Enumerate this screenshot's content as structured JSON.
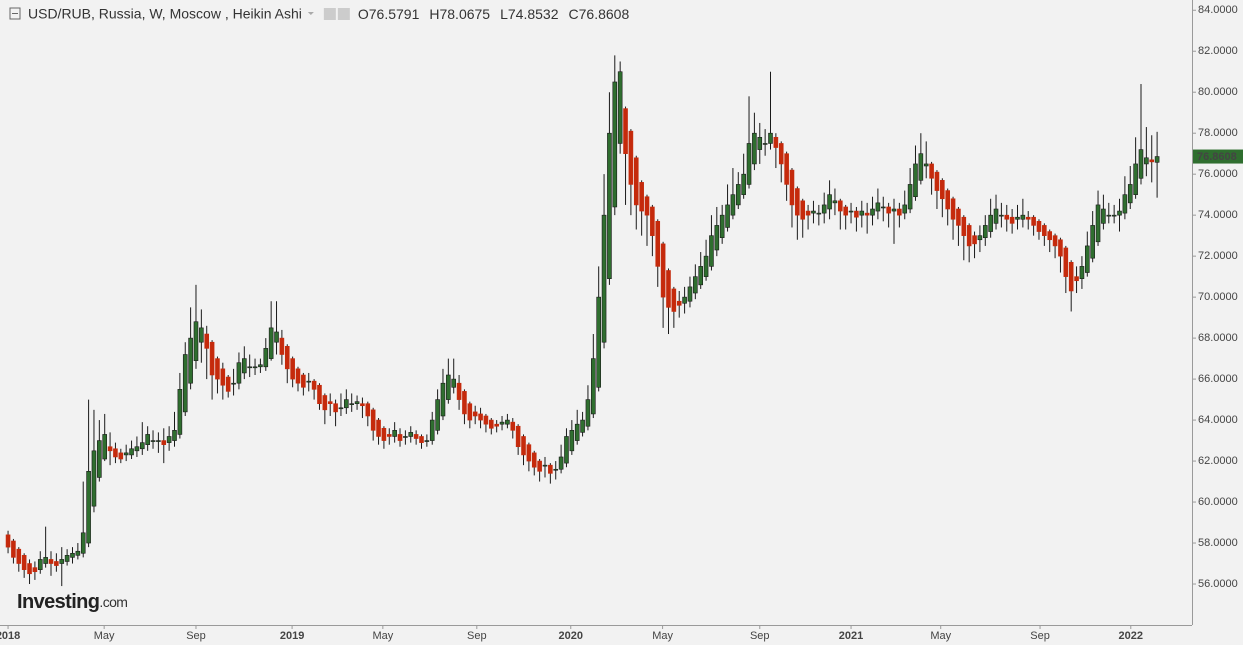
{
  "chart_data": {
    "type": "candlestick",
    "title": "USD/RUB, Russia, W, Moscow , Heikin Ashi",
    "ohlc_prefixes": [
      "O",
      "H",
      "L",
      "C"
    ],
    "watermark": [
      "Investing",
      ".com"
    ],
    "up_color": "#2f6e2f",
    "down_color": "#c52a0c",
    "edge_color": "#1a1a1a",
    "ylim": [
      54,
      84.5
    ],
    "xlim": [
      -1.5,
      220.5
    ],
    "yticks": [
      {
        "value": 56,
        "label": "56.0000"
      },
      {
        "value": 58,
        "label": "58.0000"
      },
      {
        "value": 60,
        "label": "60.0000"
      },
      {
        "value": 62,
        "label": "62.0000"
      },
      {
        "value": 64,
        "label": "64.0000"
      },
      {
        "value": 66,
        "label": "66.0000"
      },
      {
        "value": 68,
        "label": "68.0000"
      },
      {
        "value": 70,
        "label": "70.0000"
      },
      {
        "value": 72,
        "label": "72.0000"
      },
      {
        "value": 74,
        "label": "74.0000"
      },
      {
        "value": 76,
        "label": "76.0000"
      },
      {
        "value": 78,
        "label": "78.0000"
      },
      {
        "value": 80,
        "label": "80.0000"
      },
      {
        "value": 82,
        "label": "82.0000"
      },
      {
        "value": 84,
        "label": "84.0000"
      }
    ],
    "xticks": [
      {
        "value": 0,
        "label": "2018"
      },
      {
        "value": 17.9,
        "label": "May"
      },
      {
        "value": 35,
        "label": "Sep"
      },
      {
        "value": 52.9,
        "label": "2019"
      },
      {
        "value": 69.8,
        "label": "May"
      },
      {
        "value": 87.3,
        "label": "Sep"
      },
      {
        "value": 104.8,
        "label": "2020"
      },
      {
        "value": 121.9,
        "label": "May"
      },
      {
        "value": 140,
        "label": "Sep"
      },
      {
        "value": 157,
        "label": "2021"
      },
      {
        "value": 173.7,
        "label": "May"
      },
      {
        "value": 192.2,
        "label": "Sep"
      },
      {
        "value": 209.1,
        "label": "2022"
      }
    ],
    "ohlc": [
      [
        58.4,
        58.6,
        57.5,
        57.8
      ],
      [
        58.1,
        58.2,
        57.0,
        57.3
      ],
      [
        57.7,
        57.8,
        56.6,
        57.0
      ],
      [
        57.4,
        57.5,
        56.3,
        56.7
      ],
      [
        57.0,
        57.2,
        56.0,
        56.5
      ],
      [
        56.8,
        57.1,
        56.2,
        56.6
      ],
      [
        56.7,
        57.6,
        56.5,
        57.2
      ],
      [
        57.0,
        58.8,
        56.8,
        57.3
      ],
      [
        57.2,
        57.6,
        56.4,
        57.0
      ],
      [
        57.1,
        57.5,
        56.6,
        56.9
      ],
      [
        57.0,
        57.8,
        55.9,
        57.2
      ],
      [
        57.1,
        57.7,
        56.9,
        57.4
      ],
      [
        57.3,
        57.8,
        57.0,
        57.5
      ],
      [
        57.4,
        58.0,
        57.2,
        57.6
      ],
      [
        57.5,
        61.0,
        57.3,
        58.5
      ],
      [
        58.0,
        65.0,
        57.8,
        61.5
      ],
      [
        59.8,
        64.5,
        59.5,
        62.5
      ],
      [
        61.2,
        64.0,
        61.0,
        63.0
      ],
      [
        62.1,
        64.3,
        62.0,
        63.3
      ],
      [
        62.7,
        63.4,
        61.8,
        62.5
      ],
      [
        62.6,
        62.9,
        61.9,
        62.2
      ],
      [
        62.4,
        62.6,
        61.9,
        62.1
      ],
      [
        62.3,
        62.8,
        62.0,
        62.4
      ],
      [
        62.3,
        63.0,
        62.1,
        62.6
      ],
      [
        62.5,
        63.2,
        62.2,
        62.7
      ],
      [
        62.6,
        63.9,
        62.3,
        62.9
      ],
      [
        62.8,
        63.7,
        62.5,
        63.3
      ],
      [
        63.0,
        63.5,
        62.6,
        63.0
      ],
      [
        63.0,
        63.4,
        62.4,
        63.0
      ],
      [
        63.0,
        63.6,
        61.9,
        62.8
      ],
      [
        62.9,
        63.7,
        62.5,
        63.2
      ],
      [
        63.0,
        64.4,
        62.7,
        63.5
      ],
      [
        63.3,
        66.3,
        63.1,
        65.5
      ],
      [
        64.4,
        67.8,
        64.2,
        67.2
      ],
      [
        65.8,
        69.5,
        65.5,
        68.0
      ],
      [
        66.9,
        70.6,
        66.5,
        68.8
      ],
      [
        67.8,
        69.4,
        66.8,
        68.5
      ],
      [
        68.2,
        68.6,
        66.0,
        67.5
      ],
      [
        67.8,
        67.9,
        65.0,
        66.2
      ],
      [
        67.0,
        67.1,
        65.3,
        66.0
      ],
      [
        66.5,
        66.8,
        65.0,
        65.7
      ],
      [
        66.1,
        66.2,
        65.1,
        65.4
      ],
      [
        65.8,
        66.5,
        65.2,
        65.8
      ],
      [
        65.8,
        67.3,
        65.5,
        66.8
      ],
      [
        66.3,
        67.6,
        66.0,
        67.0
      ],
      [
        66.6,
        67.2,
        66.1,
        66.6
      ],
      [
        66.6,
        67.0,
        66.2,
        66.6
      ],
      [
        66.6,
        67.0,
        66.3,
        66.7
      ],
      [
        66.6,
        68.0,
        66.4,
        67.5
      ],
      [
        67.0,
        69.8,
        66.9,
        68.5
      ],
      [
        67.8,
        69.8,
        67.2,
        68.3
      ],
      [
        68.0,
        68.4,
        66.7,
        67.2
      ],
      [
        67.6,
        67.7,
        65.8,
        66.5
      ],
      [
        67.0,
        67.1,
        65.6,
        66.0
      ],
      [
        66.5,
        66.6,
        65.4,
        65.8
      ],
      [
        66.2,
        66.3,
        65.2,
        65.6
      ],
      [
        65.9,
        66.3,
        65.4,
        65.9
      ],
      [
        65.9,
        66.0,
        65.0,
        65.5
      ],
      [
        65.7,
        65.8,
        64.5,
        64.8
      ],
      [
        65.2,
        65.3,
        63.8,
        64.5
      ],
      [
        64.9,
        65.3,
        64.2,
        64.8
      ],
      [
        64.8,
        65.0,
        63.7,
        64.4
      ],
      [
        64.6,
        65.3,
        64.2,
        64.6
      ],
      [
        64.6,
        65.5,
        64.3,
        65.0
      ],
      [
        64.8,
        65.3,
        64.4,
        64.8
      ],
      [
        64.8,
        65.2,
        64.5,
        64.9
      ],
      [
        64.8,
        65.1,
        64.1,
        64.7
      ],
      [
        64.8,
        64.9,
        63.7,
        64.2
      ],
      [
        64.5,
        64.6,
        63.0,
        63.5
      ],
      [
        64.0,
        64.1,
        62.8,
        63.2
      ],
      [
        63.6,
        63.7,
        62.6,
        63.0
      ],
      [
        63.3,
        63.6,
        62.8,
        63.2
      ],
      [
        63.2,
        63.9,
        62.9,
        63.5
      ],
      [
        63.3,
        63.6,
        62.7,
        63.0
      ],
      [
        63.2,
        63.5,
        62.8,
        63.2
      ],
      [
        63.2,
        63.7,
        62.9,
        63.4
      ],
      [
        63.3,
        63.5,
        62.8,
        63.1
      ],
      [
        63.2,
        63.3,
        62.6,
        62.9
      ],
      [
        63.0,
        63.3,
        62.7,
        63.0
      ],
      [
        63.0,
        64.4,
        62.8,
        64.0
      ],
      [
        63.5,
        65.5,
        63.3,
        65.0
      ],
      [
        64.2,
        66.5,
        64.0,
        65.8
      ],
      [
        65.0,
        67.0,
        64.8,
        66.2
      ],
      [
        65.6,
        67.0,
        65.3,
        66.0
      ],
      [
        65.8,
        66.2,
        64.5,
        65.0
      ],
      [
        65.4,
        65.5,
        63.8,
        64.3
      ],
      [
        64.8,
        64.9,
        63.6,
        64.0
      ],
      [
        64.4,
        64.7,
        63.8,
        64.2
      ],
      [
        64.3,
        64.6,
        63.6,
        64.0
      ],
      [
        64.2,
        64.3,
        63.4,
        63.8
      ],
      [
        64.0,
        64.1,
        63.3,
        63.6
      ],
      [
        63.8,
        64.0,
        63.4,
        63.7
      ],
      [
        63.8,
        64.2,
        63.5,
        63.9
      ],
      [
        63.8,
        64.3,
        63.6,
        64.0
      ],
      [
        63.9,
        64.1,
        63.1,
        63.5
      ],
      [
        63.7,
        63.8,
        62.3,
        62.7
      ],
      [
        63.2,
        63.3,
        61.8,
        62.3
      ],
      [
        62.8,
        62.9,
        61.5,
        62.0
      ],
      [
        62.4,
        62.5,
        61.3,
        61.7
      ],
      [
        62.0,
        62.1,
        61.0,
        61.5
      ],
      [
        61.8,
        62.2,
        61.2,
        61.8
      ],
      [
        61.8,
        61.9,
        60.9,
        61.4
      ],
      [
        61.6,
        62.0,
        61.1,
        61.6
      ],
      [
        61.6,
        62.8,
        61.4,
        62.2
      ],
      [
        61.9,
        63.6,
        61.7,
        63.2
      ],
      [
        62.5,
        64.0,
        62.3,
        63.5
      ],
      [
        63.0,
        64.5,
        62.8,
        63.8
      ],
      [
        63.4,
        64.4,
        63.2,
        64.0
      ],
      [
        63.7,
        65.7,
        63.5,
        65.0
      ],
      [
        64.3,
        68.2,
        64.1,
        67.0
      ],
      [
        65.6,
        71.5,
        65.4,
        70.0
      ],
      [
        67.8,
        76.0,
        67.5,
        74.0
      ],
      [
        70.9,
        80.0,
        70.6,
        78.0
      ],
      [
        74.4,
        81.8,
        74.0,
        80.5
      ],
      [
        77.5,
        81.5,
        77.0,
        81.0
      ],
      [
        79.2,
        79.3,
        74.5,
        77.0
      ],
      [
        78.1,
        78.2,
        74.0,
        75.5
      ],
      [
        76.8,
        76.9,
        73.3,
        74.5
      ],
      [
        75.6,
        75.7,
        73.0,
        74.2
      ],
      [
        74.9,
        75.0,
        72.5,
        74.0
      ],
      [
        74.4,
        74.5,
        72.0,
        73.0
      ],
      [
        73.7,
        73.8,
        70.5,
        71.5
      ],
      [
        72.6,
        72.7,
        68.5,
        70.0
      ],
      [
        71.3,
        71.4,
        68.2,
        69.5
      ],
      [
        70.4,
        70.5,
        68.5,
        69.3
      ],
      [
        69.8,
        70.3,
        69.0,
        69.6
      ],
      [
        69.7,
        70.5,
        69.2,
        70.0
      ],
      [
        69.8,
        71.0,
        69.5,
        70.5
      ],
      [
        70.2,
        71.6,
        69.9,
        71.0
      ],
      [
        70.6,
        72.2,
        70.4,
        71.5
      ],
      [
        71.0,
        72.8,
        70.8,
        72.0
      ],
      [
        71.5,
        74.0,
        71.3,
        73.0
      ],
      [
        72.3,
        74.4,
        72.0,
        73.5
      ],
      [
        72.9,
        74.5,
        72.6,
        74.0
      ],
      [
        73.4,
        75.5,
        73.2,
        74.5
      ],
      [
        74.0,
        76.3,
        73.8,
        75.0
      ],
      [
        74.5,
        76.1,
        74.3,
        75.5
      ],
      [
        75.0,
        77.0,
        74.8,
        76.0
      ],
      [
        75.5,
        79.8,
        75.3,
        77.5
      ],
      [
        76.5,
        79.0,
        76.2,
        78.0
      ],
      [
        77.2,
        78.5,
        76.5,
        77.8
      ],
      [
        77.5,
        78.2,
        76.9,
        77.5
      ],
      [
        77.5,
        81.0,
        77.2,
        78.0
      ],
      [
        77.8,
        78.0,
        76.3,
        77.3
      ],
      [
        77.5,
        77.6,
        75.6,
        76.5
      ],
      [
        77.0,
        77.1,
        74.7,
        75.5
      ],
      [
        76.2,
        76.3,
        73.4,
        74.5
      ],
      [
        75.3,
        75.4,
        72.8,
        74.0
      ],
      [
        74.7,
        74.8,
        72.9,
        73.8
      ],
      [
        74.2,
        74.5,
        73.3,
        74.0
      ],
      [
        74.1,
        74.7,
        73.6,
        74.2
      ],
      [
        74.1,
        74.5,
        73.5,
        74.1
      ],
      [
        74.1,
        75.1,
        73.6,
        74.5
      ],
      [
        74.3,
        75.7,
        73.8,
        75.0
      ],
      [
        74.6,
        75.3,
        74.0,
        74.7
      ],
      [
        74.7,
        74.8,
        73.3,
        74.2
      ],
      [
        74.4,
        74.5,
        73.3,
        74.0
      ],
      [
        74.2,
        74.6,
        73.6,
        74.2
      ],
      [
        74.2,
        74.4,
        73.2,
        73.9
      ],
      [
        74.0,
        74.7,
        73.4,
        74.2
      ],
      [
        74.1,
        74.6,
        73.1,
        74.0
      ],
      [
        74.0,
        74.9,
        73.5,
        74.3
      ],
      [
        74.2,
        75.3,
        73.8,
        74.6
      ],
      [
        74.4,
        74.9,
        73.7,
        74.4
      ],
      [
        74.4,
        74.6,
        73.4,
        74.1
      ],
      [
        74.2,
        74.8,
        72.6,
        74.3
      ],
      [
        74.3,
        74.6,
        73.4,
        74.0
      ],
      [
        74.1,
        75.2,
        73.8,
        74.5
      ],
      [
        74.3,
        76.3,
        74.1,
        75.5
      ],
      [
        74.9,
        77.4,
        74.7,
        76.5
      ],
      [
        75.7,
        78.0,
        75.5,
        77.0
      ],
      [
        76.4,
        77.6,
        75.8,
        76.5
      ],
      [
        76.5,
        76.6,
        75.0,
        75.8
      ],
      [
        76.1,
        76.2,
        74.3,
        75.2
      ],
      [
        75.7,
        75.8,
        73.9,
        74.8
      ],
      [
        75.2,
        75.3,
        73.5,
        74.3
      ],
      [
        74.8,
        74.9,
        72.8,
        73.8
      ],
      [
        74.3,
        74.4,
        72.5,
        73.5
      ],
      [
        73.9,
        74.0,
        71.8,
        73.0
      ],
      [
        73.5,
        73.6,
        71.7,
        72.5
      ],
      [
        73.0,
        73.2,
        71.9,
        72.6
      ],
      [
        72.8,
        73.5,
        72.2,
        73.0
      ],
      [
        72.9,
        74.0,
        72.5,
        73.5
      ],
      [
        73.2,
        74.8,
        72.9,
        74.0
      ],
      [
        73.6,
        75.0,
        73.3,
        74.3
      ],
      [
        74.0,
        74.6,
        73.4,
        74.0
      ],
      [
        74.0,
        74.5,
        73.2,
        73.8
      ],
      [
        73.9,
        74.3,
        73.1,
        73.6
      ],
      [
        73.8,
        74.5,
        73.3,
        73.9
      ],
      [
        73.8,
        74.8,
        73.4,
        74.0
      ],
      [
        73.9,
        74.2,
        73.3,
        73.8
      ],
      [
        73.9,
        74.0,
        73.0,
        73.5
      ],
      [
        73.7,
        73.8,
        72.8,
        73.2
      ],
      [
        73.5,
        73.6,
        72.5,
        73.0
      ],
      [
        73.2,
        73.3,
        72.2,
        72.8
      ],
      [
        73.0,
        73.1,
        71.9,
        72.5
      ],
      [
        72.8,
        72.9,
        71.2,
        72.0
      ],
      [
        72.4,
        72.5,
        70.2,
        71.0
      ],
      [
        71.7,
        71.8,
        69.3,
        70.3
      ],
      [
        71.0,
        71.5,
        70.2,
        70.8
      ],
      [
        70.9,
        72.0,
        70.4,
        71.5
      ],
      [
        71.2,
        73.2,
        71.0,
        72.5
      ],
      [
        71.9,
        74.2,
        71.7,
        73.5
      ],
      [
        72.7,
        75.2,
        72.5,
        74.5
      ],
      [
        73.6,
        75.0,
        73.3,
        74.3
      ],
      [
        74.0,
        74.6,
        73.6,
        74.0
      ],
      [
        74.0,
        74.5,
        73.6,
        74.0
      ],
      [
        74.0,
        74.8,
        73.2,
        74.2
      ],
      [
        74.1,
        75.9,
        73.8,
        75.0
      ],
      [
        74.6,
        76.4,
        74.3,
        75.5
      ],
      [
        75.0,
        77.8,
        74.8,
        76.5
      ],
      [
        75.8,
        80.4,
        75.5,
        77.2
      ],
      [
        76.5,
        78.3,
        75.9,
        76.8
      ],
      [
        76.7,
        77.9,
        75.6,
        76.6
      ],
      [
        76.5791,
        78.0675,
        74.8532,
        76.8608
      ]
    ]
  }
}
